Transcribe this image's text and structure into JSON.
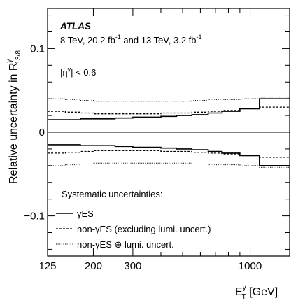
{
  "chart_data": {
    "type": "line",
    "step": true,
    "x_scale": "log",
    "xlim": [
      125,
      1500
    ],
    "ylim": [
      -0.148,
      0.148
    ],
    "x_ticks": [
      125,
      200,
      300,
      1000
    ],
    "x_tick_labels": [
      "125",
      "200",
      "300",
      "1000"
    ],
    "y_ticks": [
      -0.1,
      0,
      0.1
    ],
    "y_tick_labels": [
      "−0.1",
      "0",
      "0.1"
    ],
    "xlabel_main": "E",
    "xlabel_sup": "γ",
    "xlabel_sub": "T",
    "xlabel_unit": " [GeV]",
    "ylabel_main": "Relative uncertainty in R",
    "ylabel_sup": "γ",
    "ylabel_sub": "13/8",
    "grid": false,
    "zero_line": true,
    "annotations": {
      "atlas": "ATLAS",
      "energy_a": "8 TeV, 20.2 fb",
      "lumi_exp_a": "-1",
      "energy_b": " and 13 TeV, 3.2 fb",
      "lumi_exp_b": "-1",
      "eta_pre": "|η",
      "eta_sup": "γ",
      "eta_post": "| < 0.6"
    },
    "legend_title": "Systematic uncertainties:",
    "legend_position": "bottom-left",
    "bin_edges": [
      125,
      150,
      175,
      200,
      250,
      300,
      350,
      400,
      470,
      550,
      650,
      750,
      900,
      1100,
      1500
    ],
    "series": [
      {
        "name": "γES",
        "style": "solid",
        "up": [
          0.015,
          0.015,
          0.016,
          0.016,
          0.017,
          0.018,
          0.018,
          0.019,
          0.02,
          0.021,
          0.023,
          0.025,
          0.028,
          0.04
        ],
        "down": [
          -0.015,
          -0.015,
          -0.016,
          -0.016,
          -0.017,
          -0.018,
          -0.018,
          -0.019,
          -0.02,
          -0.021,
          -0.023,
          -0.025,
          -0.028,
          -0.04
        ]
      },
      {
        "name": "non-γES (excluding lumi. uncert.)",
        "style": "dashed",
        "up": [
          0.025,
          0.024,
          0.023,
          0.022,
          0.022,
          0.022,
          0.022,
          0.023,
          0.023,
          0.024,
          0.025,
          0.026,
          0.028,
          0.03
        ],
        "down": [
          -0.025,
          -0.024,
          -0.023,
          -0.022,
          -0.022,
          -0.022,
          -0.022,
          -0.023,
          -0.023,
          -0.024,
          -0.025,
          -0.026,
          -0.028,
          -0.03
        ]
      },
      {
        "name": "non-γES ⊕ lumi. uncert.",
        "style": "dotted",
        "up": [
          0.04,
          0.039,
          0.038,
          0.037,
          0.037,
          0.037,
          0.037,
          0.037,
          0.037,
          0.038,
          0.039,
          0.039,
          0.04,
          0.042
        ],
        "down": [
          -0.04,
          -0.039,
          -0.038,
          -0.037,
          -0.037,
          -0.037,
          -0.037,
          -0.037,
          -0.037,
          -0.038,
          -0.039,
          -0.039,
          -0.04,
          -0.042
        ]
      }
    ]
  }
}
